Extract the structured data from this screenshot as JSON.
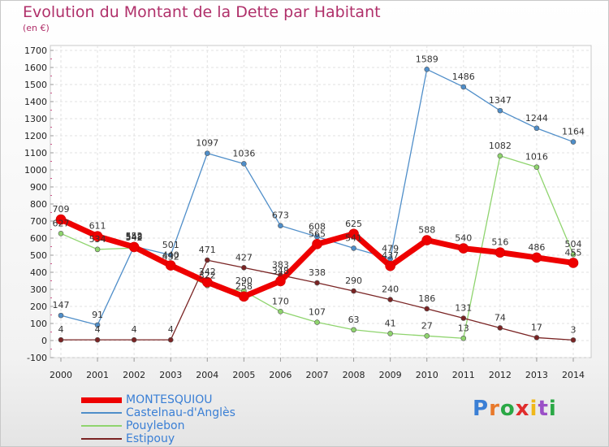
{
  "title": "Evolution du Montant de la Dette par Habitant",
  "subtitle": "(en €)",
  "logo": {
    "text": "Proxiti",
    "colors": [
      "#3a7fd5",
      "#e8792b",
      "#2aa845",
      "#e02c2c",
      "#f0b81a",
      "#9b4fc7",
      "#2aa845"
    ]
  },
  "chart_data": {
    "type": "line",
    "x": [
      2000,
      2001,
      2002,
      2003,
      2004,
      2005,
      2006,
      2007,
      2008,
      2009,
      2010,
      2011,
      2012,
      2013,
      2014
    ],
    "ylim": [
      -100,
      1700
    ],
    "yticks": [
      -100,
      0,
      100,
      200,
      300,
      400,
      500,
      600,
      700,
      800,
      900,
      1000,
      1100,
      1200,
      1300,
      1400,
      1500,
      1600,
      1700
    ],
    "grid": true,
    "legend_position": "bottom-left",
    "series": [
      {
        "name": "Castelnau-d'Anglès",
        "color": "#4f8ec9",
        "width": 1.3,
        "marker": 3,
        "values": [
          147,
          91,
          552,
          501,
          1097,
          1036,
          673,
          608,
          541,
          479,
          1589,
          1486,
          1347,
          1244,
          1164
        ],
        "labels": [
          "147",
          "91",
          "552",
          "501",
          "1097",
          "1036",
          "673",
          "608",
          "541",
          "479",
          "1589",
          "1486",
          "1347",
          "1244",
          "1164"
        ]
      },
      {
        "name": "Pouylebon",
        "color": "#8fd46e",
        "width": 1.3,
        "marker": 3,
        "values": [
          627,
          534,
          542,
          432,
          322,
          290,
          170,
          107,
          63,
          41,
          27,
          13,
          1082,
          1016,
          504
        ],
        "labels": [
          "627",
          "534",
          "542",
          "432",
          "322",
          "290",
          "170",
          "107",
          "63",
          "41",
          "27",
          "13",
          "1082",
          "1016",
          "504"
        ]
      },
      {
        "name": "Estipouy",
        "color": "#7a2424",
        "width": 1.3,
        "marker": 3,
        "values": [
          4,
          4,
          4,
          4,
          471,
          427,
          383,
          338,
          290,
          240,
          186,
          131,
          74,
          17,
          3
        ],
        "labels": [
          "4",
          "4",
          "4",
          "4",
          "471",
          "427",
          "383",
          "338",
          "290",
          "240",
          "186",
          "131",
          "74",
          "17",
          "3"
        ]
      },
      {
        "name": "MONTESQUIOU",
        "color": "#ee0000",
        "width": 7,
        "marker": 6,
        "values": [
          709,
          611,
          548,
          440,
          342,
          258,
          348,
          565,
          625,
          437,
          588,
          540,
          516,
          486,
          455
        ],
        "labels": [
          "709",
          "611",
          "548",
          "440",
          "342",
          "258",
          "348",
          "565",
          "625",
          "437",
          "588",
          "540",
          "516",
          "486",
          "455"
        ]
      }
    ]
  },
  "legend": [
    {
      "name": "MONTESQUIOU",
      "color": "#ee0000",
      "thickness": 7,
      "text_color": "#3a7fd5"
    },
    {
      "name": "Castelnau-d'Anglès",
      "color": "#4f8ec9",
      "thickness": 2,
      "text_color": "#3a7fd5"
    },
    {
      "name": "Pouylebon",
      "color": "#8fd46e",
      "thickness": 2,
      "text_color": "#3a7fd5"
    },
    {
      "name": "Estipouy",
      "color": "#7a2424",
      "thickness": 2,
      "text_color": "#3a7fd5"
    }
  ]
}
